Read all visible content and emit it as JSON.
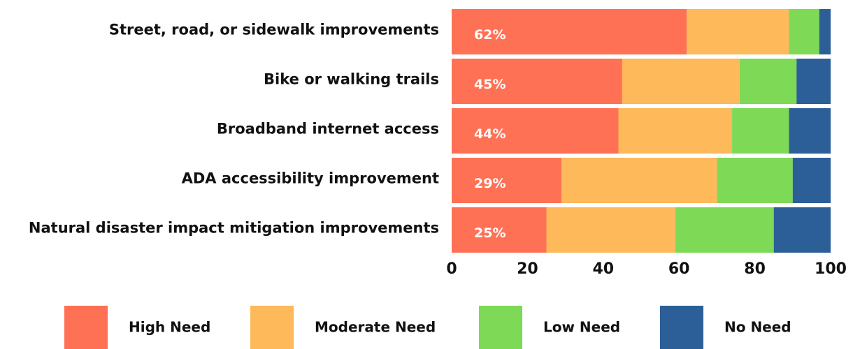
{
  "chart_data": {
    "type": "stacked-bar-horizontal",
    "categories": [
      "Street, road, or sidewalk improvements",
      "Bike or walking trails",
      "Broadband internet access",
      "ADA accessibility improvement",
      "Natural disaster impact mitigation improvements"
    ],
    "series": [
      {
        "name": "High Need",
        "color": "#ff7155",
        "values": [
          62,
          45,
          44,
          29,
          25
        ],
        "value_labels": [
          "62%",
          "45%",
          "44%",
          "29%",
          "25%"
        ]
      },
      {
        "name": "Moderate Need",
        "color": "#fdb95a",
        "values": [
          27,
          31,
          30,
          41,
          34
        ]
      },
      {
        "name": "Low Need",
        "color": "#7ed957",
        "values": [
          8,
          15,
          15,
          20,
          26
        ]
      },
      {
        "name": "No Need",
        "color": "#2c5f97",
        "values": [
          3,
          9,
          11,
          10,
          15
        ]
      }
    ],
    "xlim": [
      0,
      100
    ],
    "xticks": [
      0,
      20,
      40,
      60,
      80,
      100
    ],
    "legend": "bottom"
  }
}
